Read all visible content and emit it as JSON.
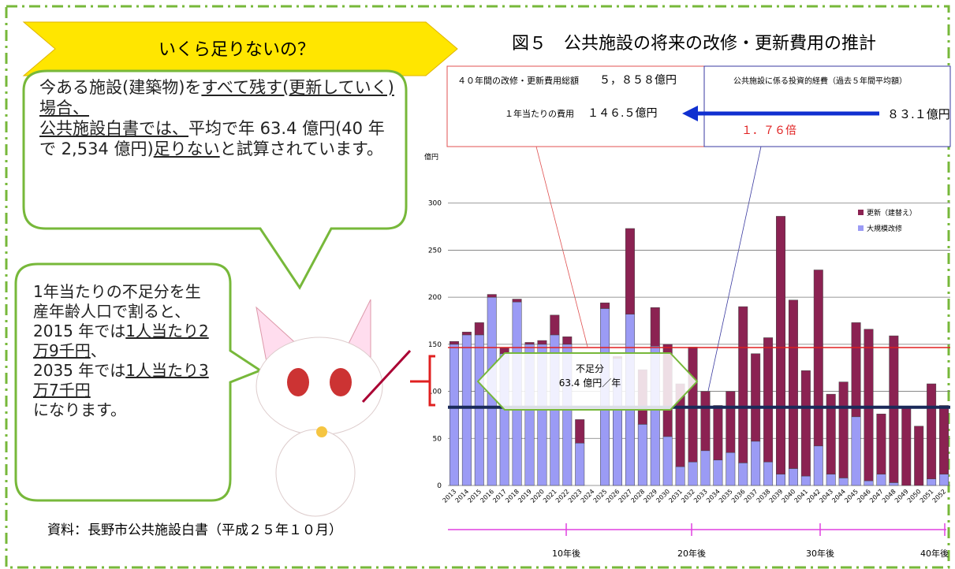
{
  "banner": "いくら足りないの？",
  "speech1": [
    "今ある施設(建築物)を",
    "すべて残す(更新していく)場合、",
    "公共施設白書では、",
    "平均で年 63.4 億円(40 年で 2,534 億円)",
    "足りない",
    "と試算されています。"
  ],
  "speech2": [
    "1年当たりの不足分を生産年齢人口で割ると、",
    "2015 年では",
    "1人当たり2万9千円",
    "、",
    "2035 年では",
    "1人当たり3万7千円",
    "になります。"
  ],
  "source": "資料：長野市公共施設白書（平成２５年１０月）",
  "boxes": {
    "total_label": "４０年間の改修・更新費用総額",
    "total_value": "５，８５８億円",
    "annual_label": "１年当たりの費用",
    "annual_value": "１４６.５億円",
    "invest_label": "公共施設に係る投資的経費（過去５年間平均額）",
    "invest_value": "８３.１億円",
    "ratio": "１．７６倍"
  },
  "shortfall": [
    "不足分",
    "63.4 億円／年"
  ],
  "timeline": [
    "10年後",
    "20年後",
    "30年後",
    "40年後"
  ],
  "chart_data": {
    "type": "stacked_bar",
    "title": "図５　公共施設の将来の改修・更新費用の推計",
    "ylabel": "億円",
    "categories": [
      "2013",
      "2014",
      "2015",
      "2016",
      "2017",
      "2018",
      "2019",
      "2020",
      "2021",
      "2022",
      "2023",
      "2024",
      "2025",
      "2026",
      "2027",
      "2028",
      "2029",
      "2030",
      "2031",
      "2032",
      "2033",
      "2034",
      "2035",
      "2036",
      "2037",
      "2038",
      "2039",
      "2040",
      "2041",
      "2042",
      "2043",
      "2044",
      "2045",
      "2046",
      "2047",
      "2048",
      "2049",
      "2050",
      "2051",
      "2052"
    ],
    "series": [
      {
        "name": "大規模改修",
        "color": "#9b9bf5",
        "values": [
          150,
          160,
          160,
          200,
          140,
          195,
          150,
          150,
          160,
          150,
          45,
          0,
          188,
          135,
          182,
          65,
          148,
          52,
          20,
          25,
          37,
          27,
          35,
          24,
          47,
          25,
          12,
          18,
          10,
          42,
          12,
          8,
          73,
          5,
          12,
          3,
          0,
          0,
          7,
          12
        ]
      },
      {
        "name": "更新（建替え）",
        "color": "#8b2252",
        "values": [
          3,
          3,
          13,
          3,
          6,
          3,
          2,
          4,
          21,
          8,
          25,
          0,
          6,
          2,
          91,
          58,
          41,
          98,
          88,
          122,
          63,
          58,
          65,
          166,
          93,
          132,
          274,
          179,
          112,
          187,
          85,
          102,
          100,
          161,
          64,
          156,
          82,
          63,
          101,
          73
        ]
      }
    ],
    "reference_lines": [
      {
        "value": 146.5,
        "color": "#e02020"
      },
      {
        "value": 83.1,
        "color": "#1a2a5a"
      }
    ],
    "ylim": [
      0,
      350
    ],
    "yticks": [
      0,
      50,
      100,
      150,
      200,
      250,
      300
    ],
    "grid": true
  }
}
